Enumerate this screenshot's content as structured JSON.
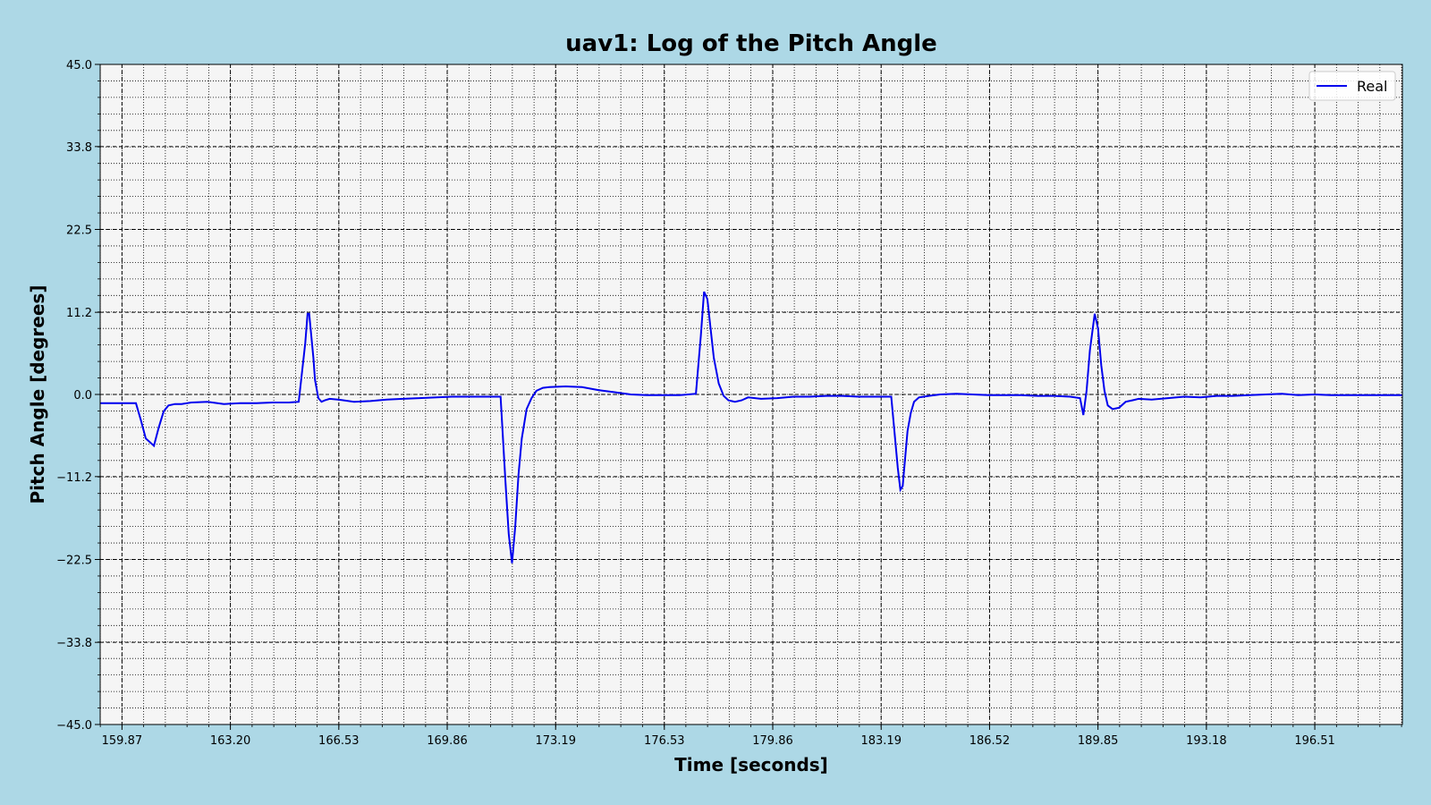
{
  "chart_data": {
    "type": "line",
    "title": "uav1: Log of the Pitch Angle",
    "xlabel": "Time [seconds]",
    "ylabel": "Pitch Angle [degrees]",
    "xlim": [
      159.2,
      199.2
    ],
    "ylim": [
      -45.0,
      45.0
    ],
    "x_ticks": [
      "159.87",
      "163.20",
      "166.53",
      "169.86",
      "173.19",
      "176.53",
      "179.86",
      "183.19",
      "186.52",
      "189.85",
      "193.18",
      "196.51"
    ],
    "y_ticks": [
      "45.0",
      "33.8",
      "22.5",
      "11.2",
      "0.0",
      "−11.2",
      "−22.5",
      "−33.8",
      "−45.0"
    ],
    "grid": true,
    "legend_position": "top-right",
    "colors": {
      "background": "#add8e6",
      "plot_area": "#f5f5f5",
      "series": "#0000ee"
    },
    "series": [
      {
        "name": "Real",
        "x": [
          159.2,
          160.0,
          160.3,
          160.45,
          160.6,
          160.85,
          161.0,
          161.15,
          161.3,
          161.5,
          161.7,
          162.0,
          162.5,
          163.0,
          163.5,
          164.0,
          164.5,
          165.0,
          165.3,
          165.5,
          165.57,
          165.62,
          165.75,
          165.8,
          165.9,
          166.0,
          166.1,
          166.25,
          166.5,
          167.0,
          167.5,
          168.0,
          168.5,
          169.0,
          170.0,
          170.5,
          171.0,
          171.5,
          171.65,
          171.75,
          171.85,
          171.95,
          172.05,
          172.15,
          172.3,
          172.45,
          172.6,
          172.8,
          173.0,
          173.5,
          174.0,
          174.5,
          175.0,
          175.5,
          176.0,
          176.5,
          177.0,
          177.5,
          177.65,
          177.75,
          177.85,
          177.95,
          178.05,
          178.2,
          178.35,
          178.5,
          178.7,
          178.9,
          179.1,
          179.5,
          180.0,
          180.5,
          181.0,
          181.5,
          182.0,
          182.5,
          183.0,
          183.5,
          183.7,
          183.78,
          183.85,
          183.92,
          184.0,
          184.1,
          184.2,
          184.35,
          184.5,
          184.65,
          185.0,
          185.5,
          186.0,
          186.5,
          187.0,
          187.5,
          188.0,
          188.5,
          189.0,
          189.3,
          189.4,
          189.5,
          189.6,
          189.75,
          189.85,
          189.95,
          190.05,
          190.15,
          190.3,
          190.5,
          190.7,
          190.9,
          191.1,
          191.5,
          192.0,
          192.5,
          193.0,
          193.5,
          194.0,
          194.5,
          195.0,
          195.5,
          196.0,
          196.5,
          197.0,
          197.5,
          198.0,
          198.5,
          199.2
        ],
        "y": [
          -1.2,
          -1.2,
          -1.2,
          -3.5,
          -6.0,
          -7.0,
          -4.5,
          -2.3,
          -1.5,
          -1.3,
          -1.3,
          -1.1,
          -1.0,
          -1.3,
          -1.2,
          -1.2,
          -1.1,
          -1.1,
          -1.0,
          7.0,
          11.0,
          11.0,
          5.0,
          2.0,
          -0.5,
          -1.0,
          -0.8,
          -0.6,
          -0.7,
          -1.0,
          -0.9,
          -0.7,
          -0.6,
          -0.5,
          -0.3,
          -0.3,
          -0.3,
          -0.3,
          -12.0,
          -19.0,
          -23.0,
          -18.0,
          -11.0,
          -6.0,
          -2.0,
          -0.5,
          0.5,
          0.9,
          1.0,
          1.1,
          1.0,
          0.6,
          0.3,
          0.0,
          -0.1,
          -0.1,
          -0.1,
          0.1,
          8.0,
          14.0,
          13.0,
          9.0,
          5.0,
          1.5,
          -0.2,
          -0.8,
          -1.0,
          -0.8,
          -0.4,
          -0.6,
          -0.5,
          -0.3,
          -0.3,
          -0.2,
          -0.2,
          -0.3,
          -0.3,
          -0.3,
          -10.0,
          -13.0,
          -12.5,
          -9.0,
          -5.0,
          -2.5,
          -1.0,
          -0.4,
          -0.3,
          -0.2,
          0.0,
          0.1,
          0.0,
          -0.1,
          -0.1,
          -0.1,
          -0.2,
          -0.2,
          -0.3,
          -0.5,
          -2.8,
          0.5,
          6.0,
          11.0,
          9.0,
          4.0,
          0.5,
          -1.5,
          -2.0,
          -1.8,
          -1.0,
          -0.8,
          -0.6,
          -0.7,
          -0.5,
          -0.3,
          -0.4,
          -0.2,
          -0.2,
          -0.1,
          0.0,
          0.1,
          -0.1,
          0.0,
          -0.1,
          -0.1,
          -0.1,
          -0.1,
          -0.1
        ]
      }
    ]
  }
}
